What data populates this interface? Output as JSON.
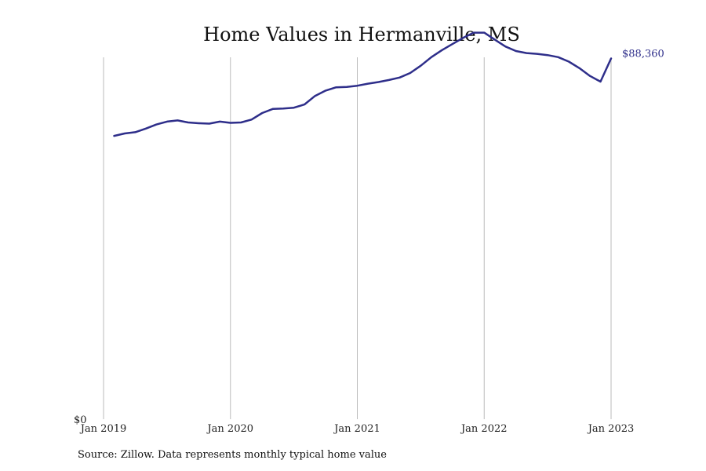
{
  "chart_data": {
    "type": "line",
    "title": "Home Values in Hermanville, MS",
    "xlabel": "",
    "ylabel": "",
    "x_tick_labels": [
      "Jan 2019",
      "Jan 2020",
      "Jan 2021",
      "Jan 2022",
      "Jan 2023"
    ],
    "y_tick_labels": [
      "$0"
    ],
    "ylim": [
      0,
      100000
    ],
    "grid": "vertical",
    "line_color": "#2e2e8a",
    "grid_color": "#bbbbbb",
    "end_label": "$88,360",
    "series": [
      {
        "x": [
          "2019-02",
          "2019-03",
          "2019-04",
          "2019-05",
          "2019-06",
          "2019-07",
          "2019-08",
          "2019-09",
          "2019-10",
          "2019-11",
          "2019-12",
          "2020-01",
          "2020-02",
          "2020-03",
          "2020-04",
          "2020-05",
          "2020-06",
          "2020-07",
          "2020-08",
          "2020-09",
          "2020-10",
          "2020-11",
          "2020-12",
          "2021-01",
          "2021-02",
          "2021-03",
          "2021-04",
          "2021-05",
          "2021-06",
          "2021-07",
          "2021-08",
          "2021-09",
          "2021-10",
          "2021-11",
          "2021-12",
          "2022-01",
          "2022-02",
          "2022-03",
          "2022-04",
          "2022-05",
          "2022-06",
          "2022-07",
          "2022-08",
          "2022-09",
          "2022-10",
          "2022-11",
          "2022-12",
          "2023-01"
        ],
        "values": [
          69400,
          70000,
          70300,
          71200,
          72200,
          72900,
          73200,
          72700,
          72500,
          72400,
          72900,
          72600,
          72700,
          73400,
          75000,
          76000,
          76100,
          76300,
          77100,
          79200,
          80500,
          81300,
          81400,
          81700,
          82200,
          82600,
          83100,
          83700,
          84800,
          86600,
          88700,
          90400,
          91900,
          93400,
          94700,
          94700,
          93000,
          91300,
          90200,
          89700,
          89500,
          89200,
          88700,
          87600,
          86000,
          84100,
          82700,
          88360
        ]
      }
    ]
  },
  "source_note": "Source: Zillow. Data represents monthly typical home value"
}
